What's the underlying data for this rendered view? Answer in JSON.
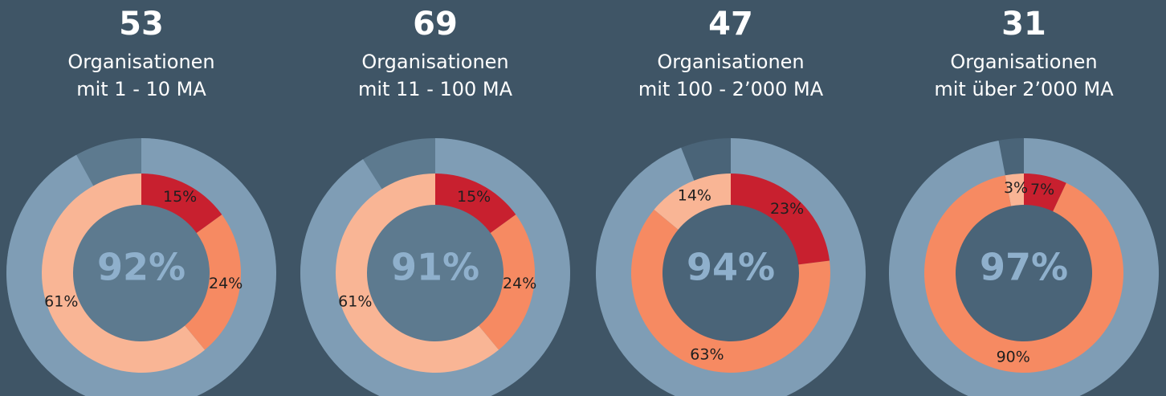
{
  "chart_data": [
    {
      "type": "donut",
      "title": "53",
      "subtitle": [
        "Organisationen",
        "mit 1 - 10 MA"
      ],
      "outer": {
        "value": 92,
        "value_label": "92%",
        "color": "#7f9db5",
        "rest_color": "#5d7a8f"
      },
      "values": [
        15,
        24,
        61
      ],
      "value_labels": [
        "15%",
        "24%",
        "61%"
      ],
      "colors": [
        "#c8202f",
        "#f68a62",
        "#f9b595"
      ]
    },
    {
      "type": "donut",
      "title": "69",
      "subtitle": [
        "Organisationen",
        "mit 11 - 100 MA"
      ],
      "outer": {
        "value": 91,
        "value_label": "91%",
        "color": "#7f9db5",
        "rest_color": "#5d7a8f"
      },
      "values": [
        15,
        24,
        61
      ],
      "value_labels": [
        "15%",
        "24%",
        "61%"
      ],
      "colors": [
        "#c8202f",
        "#f68a62",
        "#f9b595"
      ]
    },
    {
      "type": "donut",
      "title": "47",
      "subtitle": [
        "Organisationen",
        "mit 100 - 2’000 MA"
      ],
      "outer": {
        "value": 94,
        "value_label": "94%",
        "color": "#7f9db5",
        "rest_color": "#4a6478"
      },
      "values": [
        23,
        63,
        14
      ],
      "value_labels": [
        "23%",
        "63%",
        "14%"
      ],
      "colors": [
        "#c8202f",
        "#f68a62",
        "#f9b595"
      ]
    },
    {
      "type": "donut",
      "title": "31",
      "subtitle": [
        "Organisationen",
        "mit über 2’000 MA"
      ],
      "outer": {
        "value": 97,
        "value_label": "97%",
        "color": "#7f9db5",
        "rest_color": "#4a6478"
      },
      "values": [
        7,
        90,
        3
      ],
      "value_labels": [
        "7%",
        "90%",
        "3%"
      ],
      "colors": [
        "#c8202f",
        "#f68a62",
        "#f9b595"
      ]
    }
  ]
}
